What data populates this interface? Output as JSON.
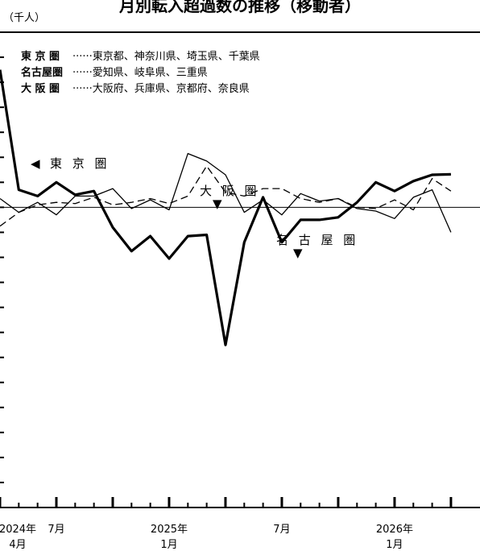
{
  "chart_data": {
    "type": "line",
    "title": "月別転入超過数の推移（移動者）",
    "unit_label": "（千人）",
    "x_labels": [
      {
        "index": 0,
        "line1": "2024年",
        "line2": "4月"
      },
      {
        "index": 3,
        "line1": "7月",
        "line2": ""
      },
      {
        "index": 9,
        "line1": "2025年",
        "line2": "1月"
      },
      {
        "index": 15,
        "line1": "7月",
        "line2": ""
      },
      {
        "index": 21,
        "line1": "2026年",
        "line2": "1月"
      }
    ],
    "ylim": [
      -12,
      7
    ],
    "gridlines": false,
    "legend": [
      {
        "key": "東 京 圏",
        "text": "······東京都、神奈川県、埼玉県、千葉県"
      },
      {
        "key": "名古屋圏",
        "text": "······愛知県、岐阜県、三重県"
      },
      {
        "key": "大 阪 圏",
        "text": "······大阪府、兵庫県、京都府、奈良県"
      }
    ],
    "series": [
      {
        "name": "東 京 圏",
        "marker": "◀",
        "style": "bold",
        "values": [
          5.5,
          0.7,
          0.45,
          1.0,
          0.5,
          0.65,
          -0.8,
          -1.75,
          -1.15,
          -2.05,
          -1.15,
          -1.1,
          -5.5,
          -1.4,
          0.4,
          -1.4,
          -0.5,
          -0.5,
          -0.4,
          0.2,
          1.0,
          0.65,
          1.05,
          1.3,
          1.32
        ]
      },
      {
        "name": "大 阪 圏",
        "marker": "▼",
        "style": "dashed",
        "values": [
          -0.75,
          -0.2,
          0.1,
          0.2,
          0.15,
          0.4,
          0.1,
          0.2,
          0.35,
          0.15,
          0.45,
          1.65,
          0.6,
          0.45,
          0.75,
          0.75,
          0.35,
          0.2,
          0.35,
          0.0,
          -0.05,
          0.3,
          -0.1,
          1.15,
          0.65
        ]
      },
      {
        "name": "名 古 屋 圏",
        "marker": "▼",
        "style": "thin",
        "values": [
          0.35,
          -0.2,
          0.2,
          -0.3,
          0.45,
          0.45,
          0.75,
          -0.05,
          0.3,
          -0.1,
          2.15,
          1.85,
          1.3,
          -0.2,
          0.3,
          -0.3,
          0.55,
          0.25,
          0.35,
          -0.05,
          -0.15,
          -0.45,
          0.4,
          0.7,
          -1.0
        ]
      }
    ]
  }
}
